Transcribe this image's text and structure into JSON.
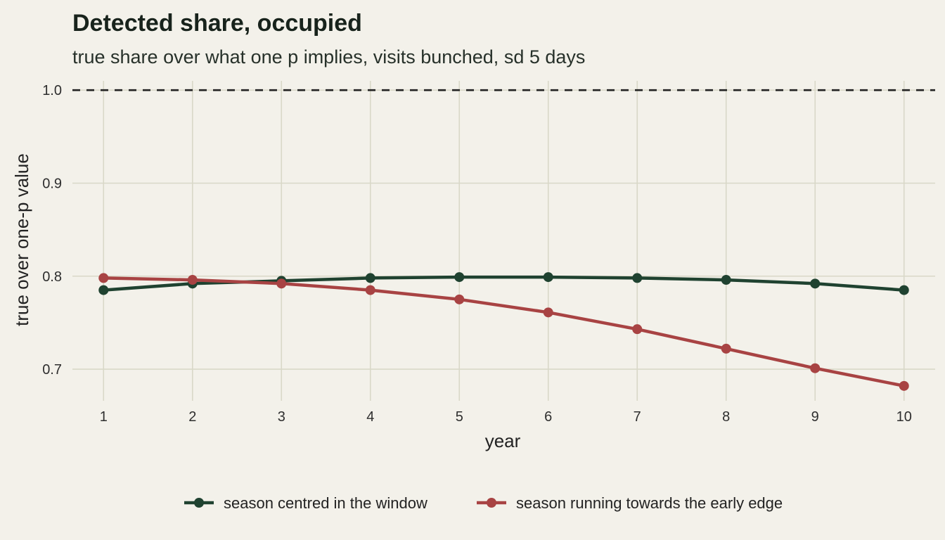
{
  "chart_data": {
    "type": "line",
    "title": "Detected share, occupied",
    "subtitle": "true share over what one p implies, visits bunched, sd 5 days",
    "xlabel": "year",
    "ylabel": "true over one-p value",
    "x": [
      1,
      2,
      3,
      4,
      5,
      6,
      7,
      8,
      9,
      10
    ],
    "x_ticks": [
      "1",
      "2",
      "3",
      "4",
      "5",
      "6",
      "7",
      "8",
      "9",
      "10"
    ],
    "y_ticks": [
      "0.7",
      "0.8",
      "0.9",
      "1.0"
    ],
    "y_tick_values": [
      0.7,
      0.8,
      0.9,
      1.0
    ],
    "xlim": [
      0.65,
      10.35
    ],
    "ylim": [
      0.666,
      1.01
    ],
    "reference_line": {
      "y": 1.0,
      "style": "dashed"
    },
    "grid": true,
    "legend_position": "bottom",
    "series": [
      {
        "name": "season centred in the window",
        "color": "#1f4230",
        "values": [
          0.785,
          0.792,
          0.795,
          0.798,
          0.799,
          0.799,
          0.798,
          0.796,
          0.792,
          0.785
        ]
      },
      {
        "name": "season running towards the early edge",
        "color": "#a84343",
        "values": [
          0.798,
          0.796,
          0.792,
          0.785,
          0.775,
          0.761,
          0.743,
          0.722,
          0.701,
          0.682
        ]
      }
    ]
  }
}
